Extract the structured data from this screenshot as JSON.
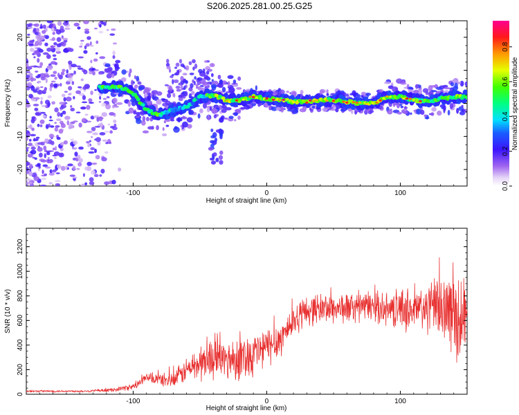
{
  "chart_data": {
    "title": "S206.2025.281.00.25.G25",
    "panels": [
      {
        "type": "heatmap",
        "xlabel": "Height of straight line (km)",
        "ylabel": "Frequency (Hz)",
        "xlim": [
          -180,
          150
        ],
        "ylim": [
          -25,
          25
        ],
        "xticks": [
          -100,
          0,
          100
        ],
        "xtick_labels": [
          "-100",
          "0",
          "100"
        ],
        "yticks": [
          -20,
          -10,
          0,
          10,
          20
        ],
        "ytick_labels": [
          "-20",
          "-10",
          "0",
          "10",
          "20"
        ],
        "ridge": {
          "description_points_x": [
            -120,
            -110,
            -100,
            -90,
            -80,
            -70,
            -60,
            -50,
            -40,
            -30,
            -20,
            -10,
            0,
            10,
            20,
            30,
            40,
            50,
            60,
            70,
            80,
            90,
            100,
            110,
            120,
            130,
            140,
            150
          ],
          "frequency_y": [
            5,
            5,
            3,
            -2,
            -3.5,
            -2,
            -1,
            2,
            2.5,
            1,
            1,
            2,
            1.5,
            1,
            0.5,
            0.5,
            1,
            1,
            0.5,
            0,
            0,
            2,
            2,
            1,
            0.5,
            1.5,
            2,
            2
          ]
        }
      },
      {
        "type": "line",
        "xlabel": "Height of straight line (km)",
        "ylabel": "SNR (10 * v/v)",
        "xlim": [
          -180,
          150
        ],
        "ylim": [
          0,
          1350
        ],
        "xticks": [
          -100,
          0,
          100
        ],
        "xtick_labels": [
          "-100",
          "0",
          "100"
        ],
        "yticks": [
          0,
          200,
          400,
          600,
          800,
          1000,
          1200
        ],
        "ytick_labels": [
          "0",
          "200",
          "400",
          "600",
          "800",
          "1000",
          "1200"
        ],
        "color": "#e83030",
        "envelope": {
          "x": [
            -180,
            -140,
            -120,
            -100,
            -90,
            -80,
            -70,
            -60,
            -50,
            -40,
            -30,
            -20,
            -10,
            0,
            10,
            20,
            30,
            40,
            60,
            80,
            90,
            100,
            110,
            120,
            130,
            140,
            150
          ],
          "mean": [
            25,
            25,
            30,
            60,
            130,
            120,
            110,
            200,
            250,
            300,
            280,
            300,
            330,
            380,
            450,
            600,
            680,
            700,
            700,
            720,
            680,
            700,
            680,
            700,
            720,
            650,
            600
          ],
          "spread": [
            10,
            10,
            15,
            30,
            50,
            60,
            80,
            120,
            180,
            200,
            200,
            220,
            220,
            200,
            180,
            150,
            150,
            150,
            150,
            150,
            150,
            200,
            220,
            250,
            300,
            400,
            450
          ]
        }
      }
    ],
    "colorbar": {
      "label": "Normalized spectral amplitude",
      "range": [
        0,
        0.95
      ],
      "ticks": [
        0.0,
        0.2,
        0.4,
        0.6,
        0.8
      ],
      "tick_labels": [
        "0.0",
        "0.2",
        "0.4",
        "0.6",
        "0.8"
      ]
    }
  }
}
